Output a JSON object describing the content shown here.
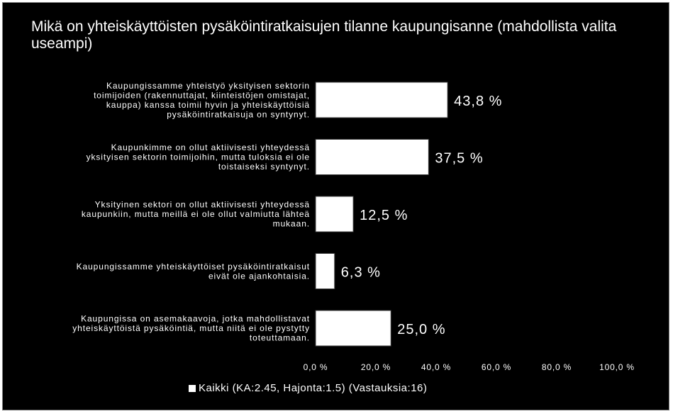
{
  "chart_data": {
    "type": "bar",
    "orientation": "horizontal",
    "title": "Mikä on yhteiskäyttöisten pysäköintiratkaisujen tilanne kaupungisanne (mahdollista valita useampi)",
    "categories": [
      [
        "Kaupungissamme  yhteistyö yksityisen sektorin",
        "toimijoiden (rakennuttajat, kiinteistöjen omistajat,",
        "kauppa) kanssa toimii hyvin ja yhteiskäyttöisiä",
        "pysäköintiratkaisuja on syntynyt."
      ],
      [
        "Kaupunkimme  on ollut aktiivisesti yhteydessä",
        "yksityisen sektorin toimijoihin, mutta tuloksia ei ole",
        "toistaiseksi syntynyt."
      ],
      [
        "Yksityinen sektori on ollut aktiivisesti yhteydessä",
        "kaupunkiin, mutta meillä ei ole ollut valmiutta lähteä",
        "mukaan."
      ],
      [
        "Kaupungissamme  yhteiskäyttöiset pysäköintiratkaisut",
        "eivät ole ajankohtaisia."
      ],
      [
        "Kaupungissa on asemakaavoja, jotka mahdollistavat",
        "yhteiskäyttöistä pysäköintiä, mutta niitä ei ole pystytty",
        "toteuttamaan."
      ]
    ],
    "values": [
      43.8,
      37.5,
      12.5,
      6.3,
      25.0
    ],
    "data_labels": [
      "43,8 %",
      "37,5 %",
      "12,5 %",
      "6,3 %",
      "25,0 %"
    ],
    "xlim": [
      0,
      100
    ],
    "x_ticks": [
      "0,0 %",
      "20,0 %",
      "40,0 %",
      "60,0 %",
      "80,0 %",
      "100,0 %"
    ],
    "series": [
      {
        "name": "Kaikki (KA:2.45, Hajonta:1.5) (Vastauksia:16)",
        "values": [
          43.8,
          37.5,
          12.5,
          6.3,
          25.0
        ]
      }
    ],
    "legend_position": "bottom",
    "grid": false,
    "colors": {
      "background": "#000000",
      "bar": "#ffffff",
      "text": "#ffffff"
    }
  }
}
